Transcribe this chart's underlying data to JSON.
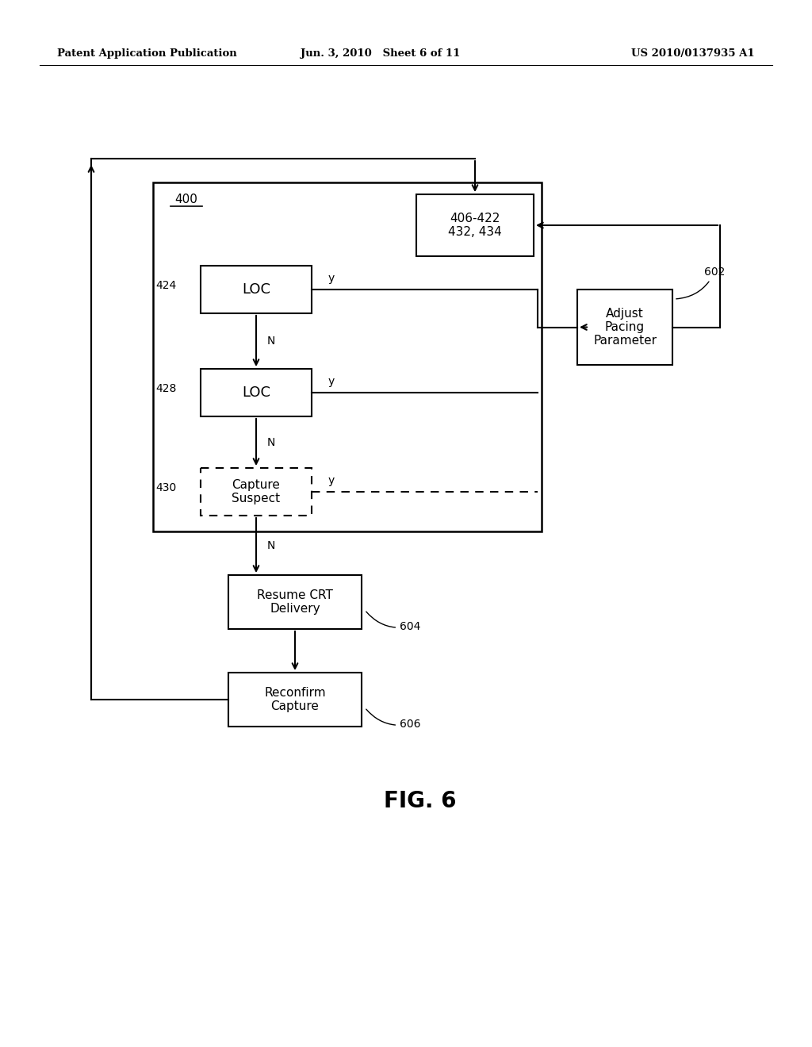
{
  "bg_color": "#ffffff",
  "header_left": "Patent Application Publication",
  "header_mid": "Jun. 3, 2010   Sheet 6 of 11",
  "header_right": "US 2010/0137935 A1",
  "fig_label": "FIG. 6"
}
